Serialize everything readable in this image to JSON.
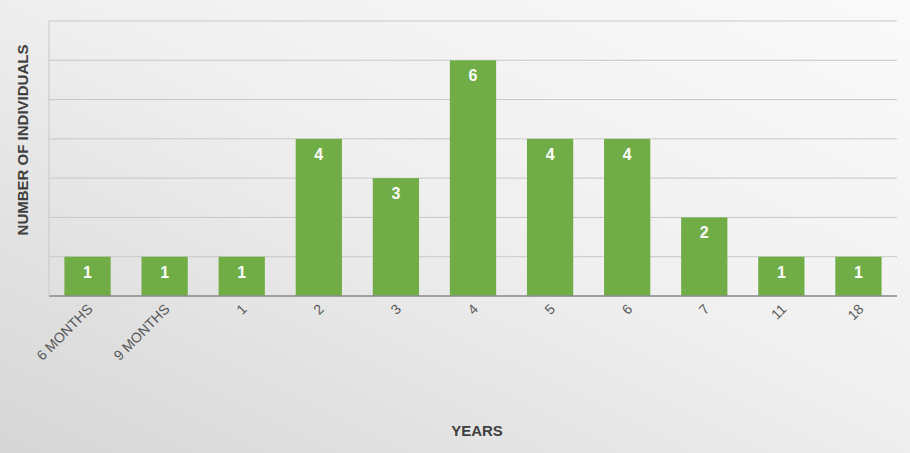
{
  "chart_data": {
    "type": "bar",
    "x_label": "YEARS",
    "y_label": "NUMBER OF INDIVIDUALS",
    "categories": [
      "6 MONTHS",
      "9 MONTHS",
      "1",
      "2",
      "3",
      "4",
      "5",
      "6",
      "7",
      "11",
      "18"
    ],
    "values": [
      1,
      1,
      1,
      4,
      3,
      6,
      4,
      4,
      2,
      1,
      1
    ],
    "color": "#70ad47",
    "ylim": [
      0,
      7
    ],
    "yticks": [
      0,
      1,
      2,
      3,
      4,
      5,
      6,
      7
    ],
    "grid": true,
    "data_labels": true,
    "tick_labels": "x"
  }
}
